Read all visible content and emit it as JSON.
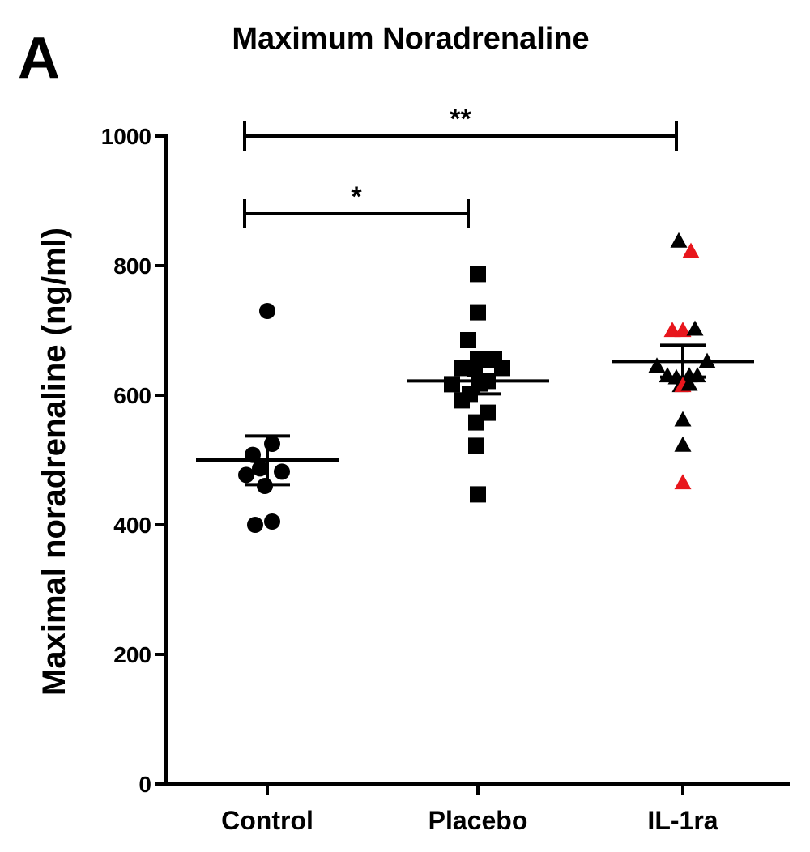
{
  "panel_label": "A",
  "chart_data": {
    "type": "scatter",
    "title": "Maximum Noradrenaline",
    "xlabel": "",
    "ylabel": "Maximal noradrenaline (ng/ml)",
    "ylim": [
      0,
      1000
    ],
    "yticks": [
      "0",
      "200",
      "400",
      "600",
      "800",
      "1000"
    ],
    "grid": false,
    "categories": [
      "Control",
      "Placebo",
      "IL-1ra"
    ],
    "colors": {
      "default": "#000000",
      "highlight": "#e8161c"
    },
    "groups": [
      {
        "category": "Control",
        "marker": "circle",
        "mean": 500,
        "sem_low": 462,
        "sem_high": 537,
        "points": [
          {
            "offset": 0.0,
            "value": 730
          },
          {
            "offset": -0.18,
            "value": 508
          },
          {
            "offset": 0.06,
            "value": 525
          },
          {
            "offset": -0.09,
            "value": 487
          },
          {
            "offset": 0.18,
            "value": 482
          },
          {
            "offset": -0.26,
            "value": 477
          },
          {
            "offset": -0.03,
            "value": 460
          },
          {
            "offset": -0.15,
            "value": 400
          },
          {
            "offset": 0.06,
            "value": 405
          }
        ]
      },
      {
        "category": "Placebo",
        "marker": "square",
        "mean": 622,
        "sem_low": 602,
        "sem_high": 644,
        "points": [
          {
            "offset": 0.0,
            "value": 787
          },
          {
            "offset": 0.0,
            "value": 728
          },
          {
            "offset": -0.12,
            "value": 685
          },
          {
            "offset": 0.0,
            "value": 655
          },
          {
            "offset": 0.2,
            "value": 655
          },
          {
            "offset": -0.2,
            "value": 642
          },
          {
            "offset": -0.04,
            "value": 640
          },
          {
            "offset": 0.3,
            "value": 642
          },
          {
            "offset": -0.32,
            "value": 617
          },
          {
            "offset": 0.12,
            "value": 622
          },
          {
            "offset": 0.02,
            "value": 618
          },
          {
            "offset": -0.1,
            "value": 602
          },
          {
            "offset": -0.2,
            "value": 592
          },
          {
            "offset": 0.12,
            "value": 573
          },
          {
            "offset": -0.02,
            "value": 558
          },
          {
            "offset": -0.02,
            "value": 522
          },
          {
            "offset": 0.0,
            "value": 447
          }
        ]
      },
      {
        "category": "IL-1ra",
        "marker": "triangle",
        "mean": 652,
        "sem_low": 628,
        "sem_high": 677,
        "points": [
          {
            "offset": -0.05,
            "value": 838,
            "highlight": false
          },
          {
            "offset": 0.1,
            "value": 822,
            "highlight": true
          },
          {
            "offset": -0.13,
            "value": 700,
            "highlight": true
          },
          {
            "offset": 0.0,
            "value": 700,
            "highlight": true
          },
          {
            "offset": 0.15,
            "value": 702,
            "highlight": false
          },
          {
            "offset": -0.32,
            "value": 645,
            "highlight": false
          },
          {
            "offset": 0.3,
            "value": 652,
            "highlight": false
          },
          {
            "offset": -0.08,
            "value": 627,
            "highlight": false
          },
          {
            "offset": 0.08,
            "value": 630,
            "highlight": false
          },
          {
            "offset": -0.19,
            "value": 630,
            "highlight": false
          },
          {
            "offset": 0.18,
            "value": 630,
            "highlight": false
          },
          {
            "offset": -0.03,
            "value": 615,
            "highlight": false
          },
          {
            "offset": 0.0,
            "value": 615,
            "highlight": true
          },
          {
            "offset": 0.08,
            "value": 617,
            "highlight": false
          },
          {
            "offset": 0.0,
            "value": 562,
            "highlight": false
          },
          {
            "offset": 0.0,
            "value": 523,
            "highlight": false
          },
          {
            "offset": 0.0,
            "value": 465,
            "highlight": true
          }
        ]
      }
    ],
    "significance": [
      {
        "from": "Control",
        "to": "Placebo",
        "label": "*",
        "level": 880
      },
      {
        "from": "Control",
        "to": "IL-1ra",
        "label": "**",
        "level": 1000
      }
    ]
  }
}
